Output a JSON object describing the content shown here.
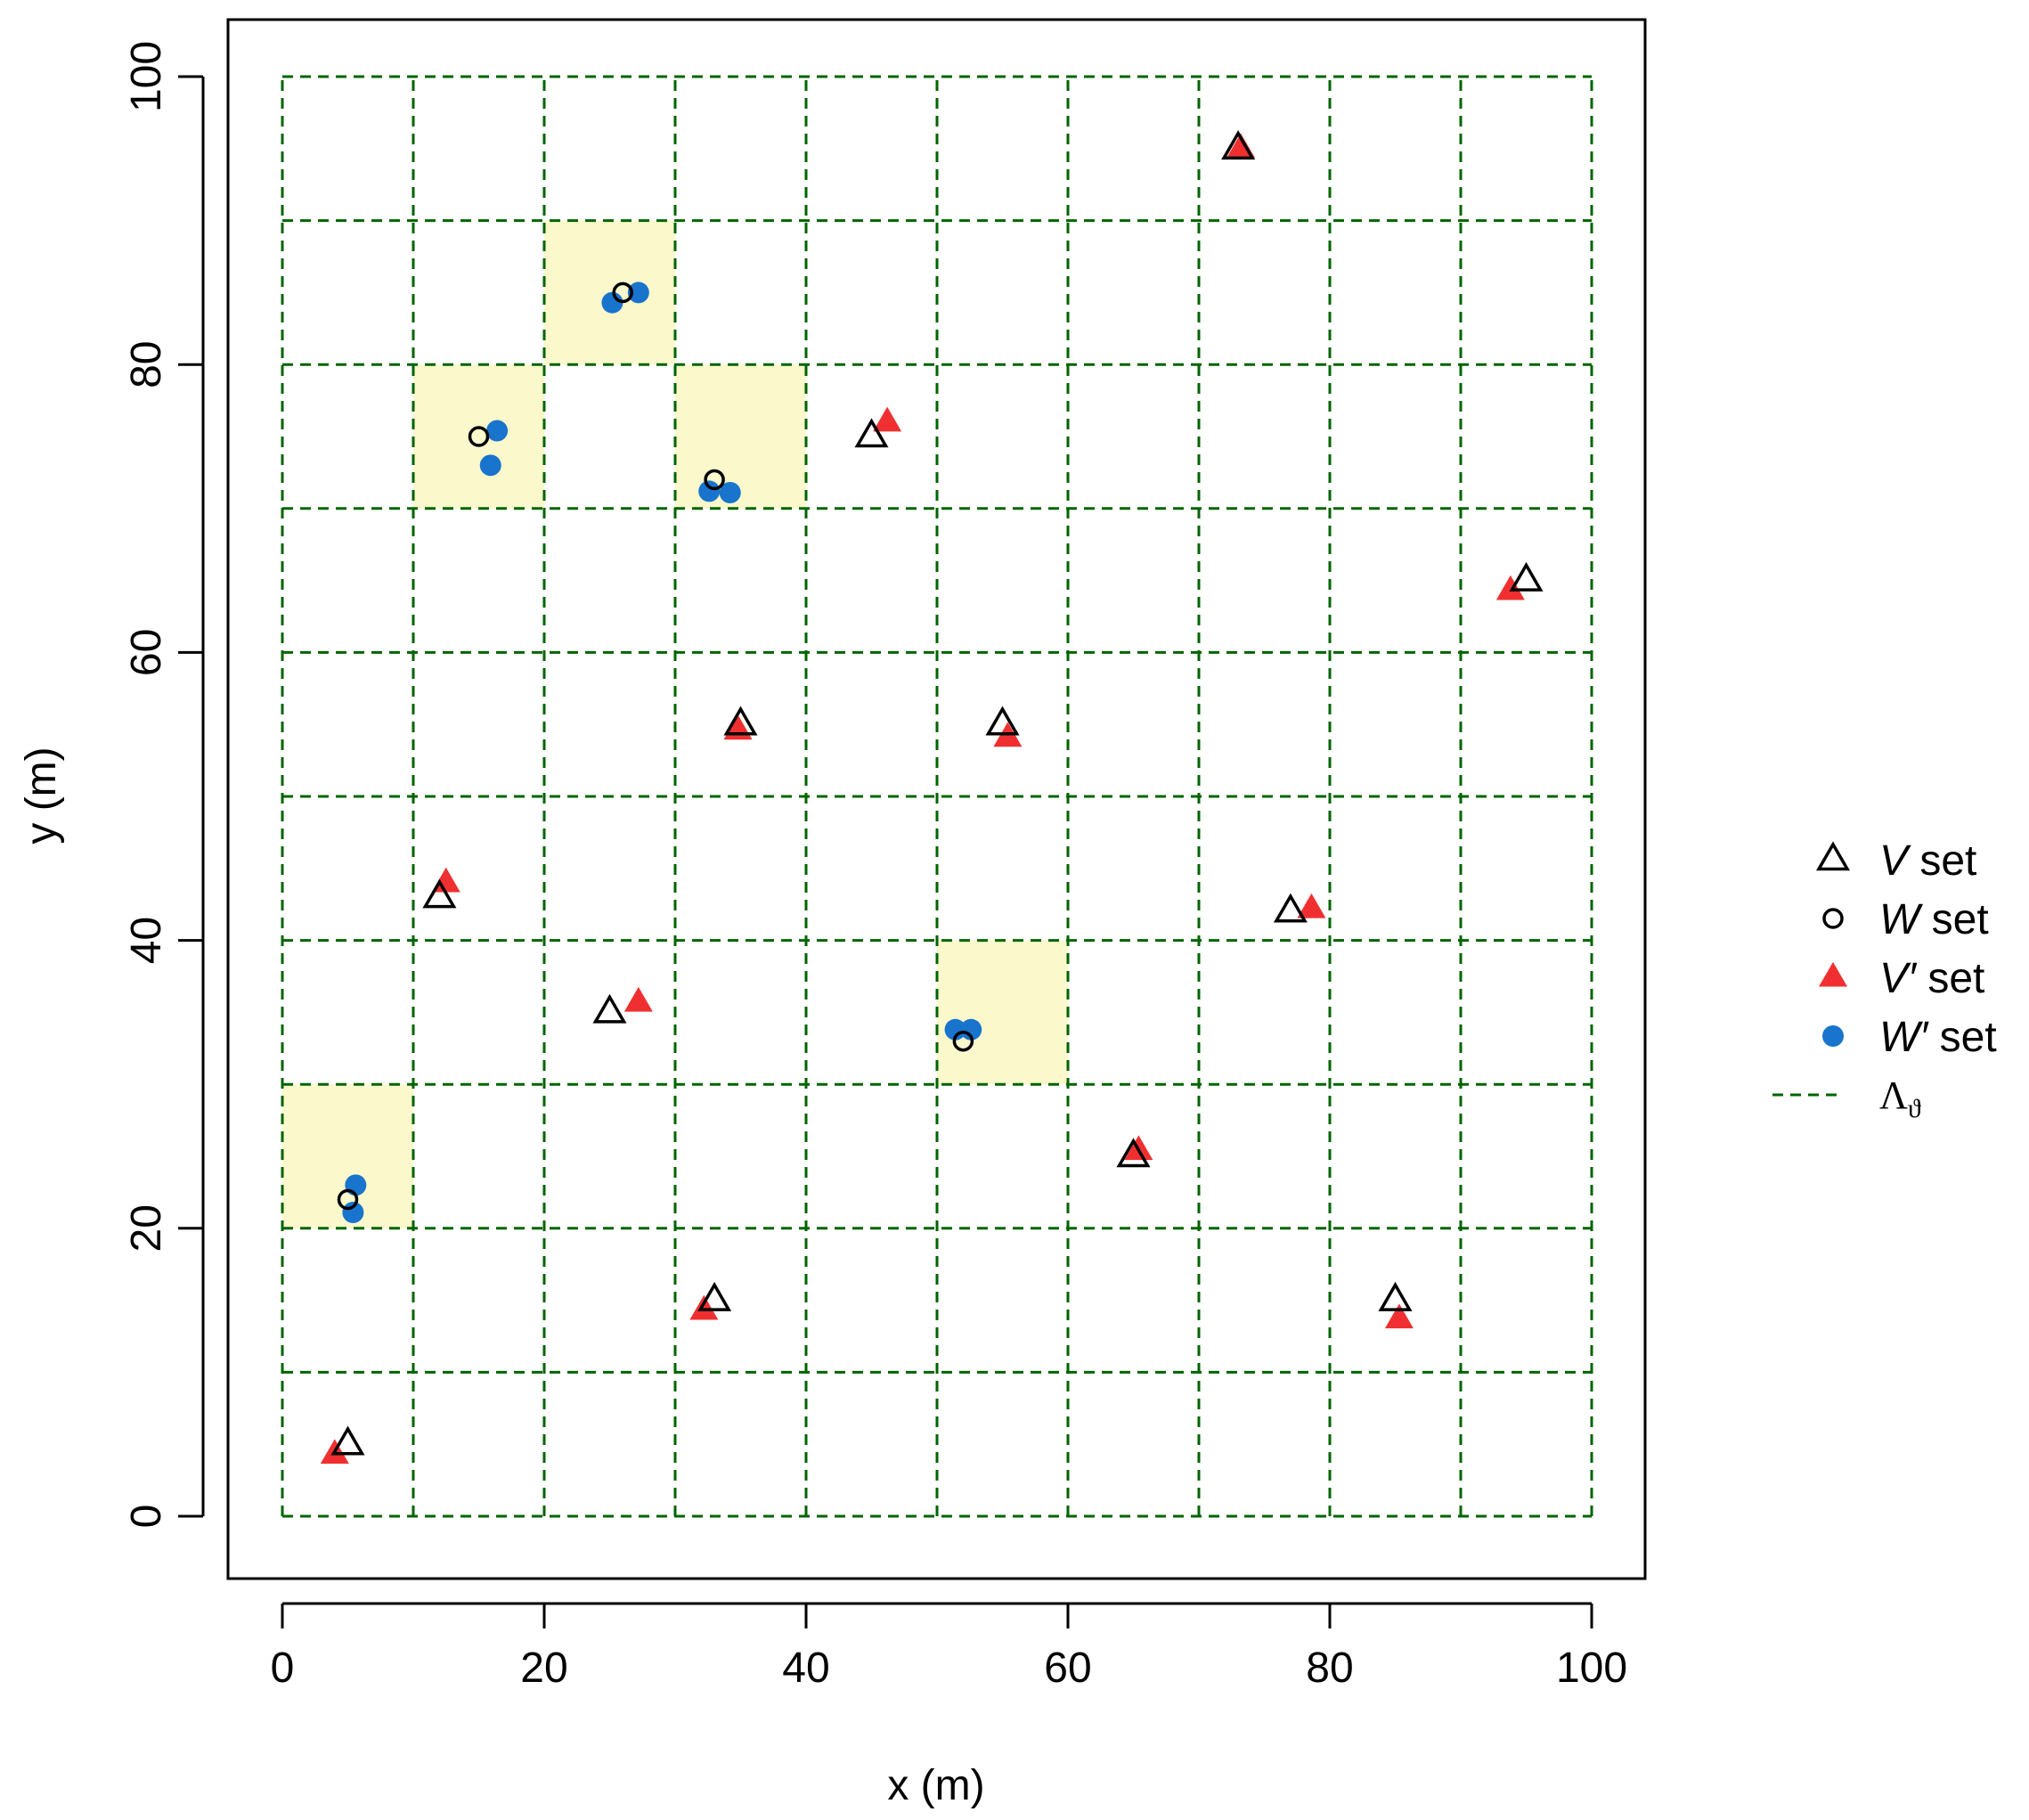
{
  "chart_data": {
    "type": "scatter",
    "xlabel": "x (m)",
    "ylabel": "y (m)",
    "xlim": [
      0,
      100
    ],
    "ylim": [
      0,
      100
    ],
    "x_ticks": [
      0,
      20,
      40,
      60,
      80,
      100
    ],
    "y_ticks": [
      0,
      20,
      40,
      60,
      80,
      100
    ],
    "grid": {
      "style": "dashed",
      "color": "#006400",
      "x_lines": [
        0,
        10,
        20,
        30,
        40,
        50,
        60,
        70,
        80,
        90,
        100
      ],
      "y_lines": [
        0,
        10,
        20,
        30,
        40,
        50,
        60,
        70,
        80,
        90,
        100
      ]
    },
    "highlight_cells": [
      {
        "x0": 0,
        "x1": 10,
        "y0": 20,
        "y1": 30
      },
      {
        "x0": 10,
        "x1": 20,
        "y0": 70,
        "y1": 80
      },
      {
        "x0": 20,
        "x1": 30,
        "y0": 80,
        "y1": 90
      },
      {
        "x0": 30,
        "x1": 40,
        "y0": 70,
        "y1": 80
      },
      {
        "x0": 50,
        "x1": 60,
        "y0": 30,
        "y1": 40
      }
    ],
    "highlight_color": "#fbf8cc",
    "legend_position": "right",
    "legend": [
      {
        "key": "V",
        "marker": "open-triangle",
        "label_pre": "V",
        "label_post": " set"
      },
      {
        "key": "W",
        "marker": "open-circle",
        "label_pre": "W",
        "label_post": " set"
      },
      {
        "key": "Vp",
        "marker": "filled-triangle",
        "label_pre": "V′",
        "label_post": " set"
      },
      {
        "key": "Wp",
        "marker": "filled-circle",
        "label_pre": "W′",
        "label_post": " set"
      },
      {
        "key": "grid",
        "marker": "dashed-line",
        "label_pre": "Λ",
        "label_sub": "ϑ",
        "label_post": ""
      }
    ],
    "series": [
      {
        "key": "V",
        "color": "#000000",
        "points": [
          {
            "x": 5,
            "y": 5
          },
          {
            "x": 12,
            "y": 43
          },
          {
            "x": 25,
            "y": 35
          },
          {
            "x": 33,
            "y": 15
          },
          {
            "x": 35,
            "y": 55
          },
          {
            "x": 45,
            "y": 75
          },
          {
            "x": 55,
            "y": 55
          },
          {
            "x": 65,
            "y": 25
          },
          {
            "x": 73,
            "y": 95
          },
          {
            "x": 77,
            "y": 42
          },
          {
            "x": 85,
            "y": 15
          },
          {
            "x": 95,
            "y": 65
          }
        ]
      },
      {
        "key": "W",
        "color": "#000000",
        "points": [
          {
            "x": 5,
            "y": 22
          },
          {
            "x": 15,
            "y": 75
          },
          {
            "x": 26,
            "y": 85
          },
          {
            "x": 33,
            "y": 72
          },
          {
            "x": 52,
            "y": 33
          }
        ]
      },
      {
        "key": "Vp",
        "color": "#f03030",
        "points": [
          {
            "x": 4,
            "y": 4.3
          },
          {
            "x": 12.5,
            "y": 44
          },
          {
            "x": 27.2,
            "y": 35.7
          },
          {
            "x": 32.2,
            "y": 14.3
          },
          {
            "x": 34.8,
            "y": 54.6
          },
          {
            "x": 46.2,
            "y": 76
          },
          {
            "x": 55.4,
            "y": 54.1
          },
          {
            "x": 65.4,
            "y": 25.4
          },
          {
            "x": 73.2,
            "y": 95
          },
          {
            "x": 78.6,
            "y": 42.2
          },
          {
            "x": 85.3,
            "y": 13.7
          },
          {
            "x": 93.8,
            "y": 64.3
          }
        ]
      },
      {
        "key": "Wp",
        "color": "#1874cd",
        "points": [
          {
            "x": 5.6,
            "y": 23
          },
          {
            "x": 5.4,
            "y": 21.1
          },
          {
            "x": 16.4,
            "y": 75.4
          },
          {
            "x": 15.9,
            "y": 73
          },
          {
            "x": 25.2,
            "y": 84.3
          },
          {
            "x": 27.2,
            "y": 85
          },
          {
            "x": 32.6,
            "y": 71.2
          },
          {
            "x": 34.2,
            "y": 71.1
          },
          {
            "x": 51.4,
            "y": 33.8
          },
          {
            "x": 52.6,
            "y": 33.8
          }
        ]
      }
    ]
  }
}
